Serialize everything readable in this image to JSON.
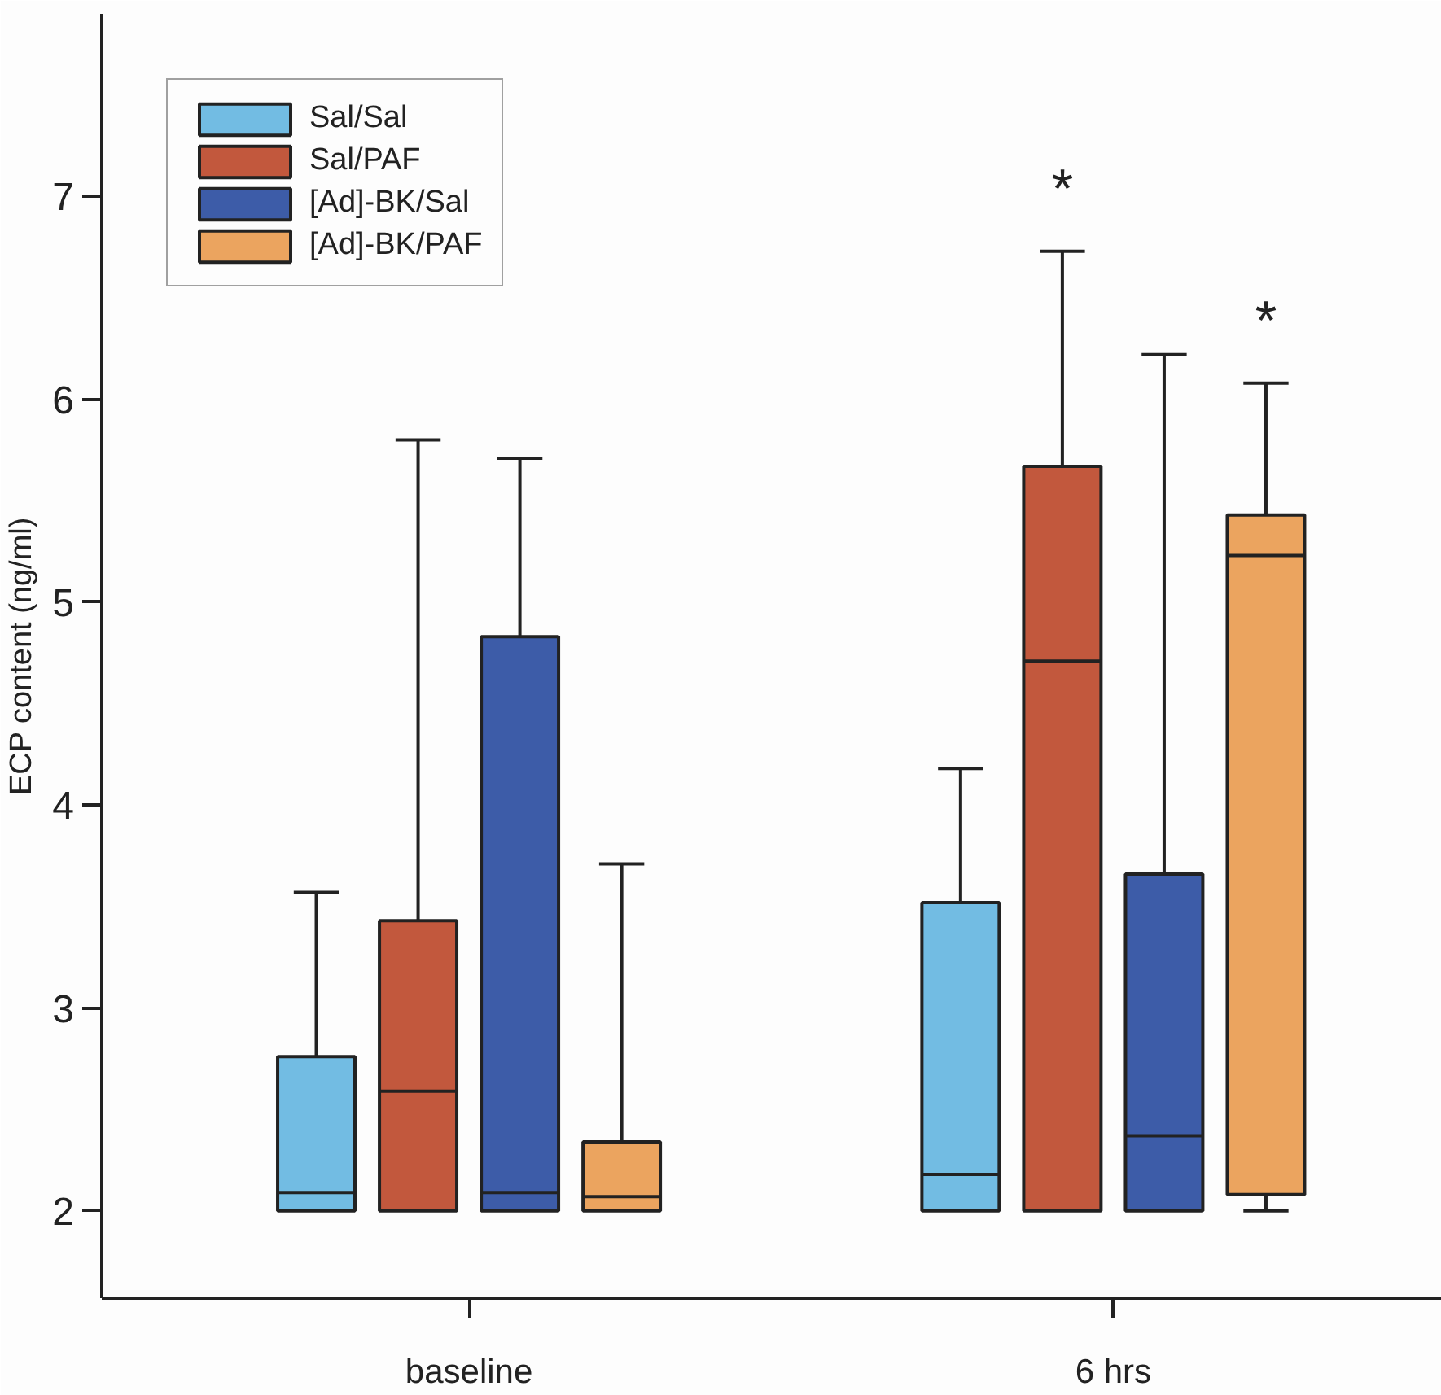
{
  "chart_data": {
    "type": "box",
    "ylabel": "ECP content (ng/ml)",
    "categories": [
      "baseline",
      "6 hrs"
    ],
    "ylim": [
      1.57,
      7.9
    ],
    "yticks": [
      2,
      3,
      4,
      5,
      6,
      7
    ],
    "grid": false,
    "legend": "top left",
    "series": [
      {
        "name": "Sal/Sal",
        "color": "#72bce3",
        "boxes": [
          {
            "low": 2,
            "q1": 2,
            "median": 2.09,
            "q3": 2.76,
            "high": 3.57
          },
          {
            "low": 2,
            "q1": 2,
            "median": 2.18,
            "q3": 3.52,
            "high": 4.18
          }
        ]
      },
      {
        "name": "Sal/PAF",
        "color": "#c2583d",
        "boxes": [
          {
            "low": 2,
            "q1": 2,
            "median": 2.59,
            "q3": 3.43,
            "high": 5.8
          },
          {
            "low": 2,
            "q1": 2,
            "median": 4.71,
            "q3": 5.67,
            "high": 6.73
          }
        ]
      },
      {
        "name": "[Ad]-BK/Sal",
        "color": "#3d5ca8",
        "boxes": [
          {
            "low": 2,
            "q1": 2,
            "median": 2.09,
            "q3": 4.83,
            "high": 5.71
          },
          {
            "low": 2,
            "q1": 2,
            "median": 2.37,
            "q3": 3.66,
            "high": 6.22
          }
        ]
      },
      {
        "name": "[Ad]-BK/PAF",
        "color": "#eba45f",
        "boxes": [
          {
            "low": 2,
            "q1": 2,
            "median": 2.07,
            "q3": 2.34,
            "high": 3.71
          },
          {
            "low": 2.0,
            "q1": 2.08,
            "median": 5.23,
            "q3": 5.43,
            "high": 6.08
          }
        ]
      }
    ],
    "annotations": [
      "*",
      "*"
    ]
  }
}
